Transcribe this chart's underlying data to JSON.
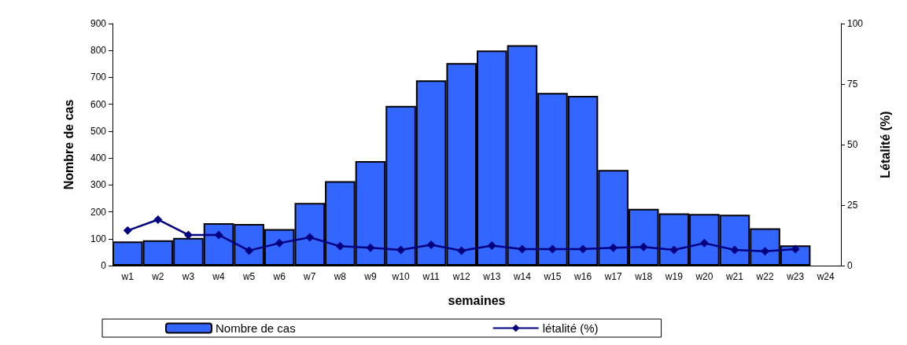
{
  "chart_data": {
    "type": "bar",
    "xlabel": "semaines",
    "ylabel": "Nombre de cas",
    "y2label": "Létalité (%)",
    "categories": [
      "w1",
      "w2",
      "w3",
      "w4",
      "w5",
      "w6",
      "w7",
      "w8",
      "w9",
      "w10",
      "w11",
      "w12",
      "w13",
      "w14",
      "w15",
      "w16",
      "w17",
      "w18",
      "w19",
      "w20",
      "w21",
      "w22",
      "w23",
      "w24"
    ],
    "series": [
      {
        "name": "Nombre de cas",
        "color": "#3366ff",
        "values": [
          90,
          94,
          103,
          158,
          155,
          136,
          233,
          314,
          389,
          594,
          689,
          753,
          800,
          820,
          642,
          631,
          356,
          211,
          194,
          192,
          189,
          139,
          75,
          null
        ]
      },
      {
        "name": "létalité (%)",
        "type": "line",
        "axis": "y2",
        "color": "#000080",
        "marker": "diamond",
        "values": [
          14.5,
          19,
          12.7,
          12.7,
          6.2,
          9.3,
          11.7,
          8,
          7.4,
          6.5,
          8.6,
          6.2,
          8.3,
          6.8,
          6.8,
          6.8,
          7.4,
          7.7,
          6.5,
          9.3,
          6.5,
          5.9,
          6.8,
          null
        ]
      }
    ],
    "ylim": [
      0,
      900
    ],
    "yticks": [
      0,
      100,
      200,
      300,
      400,
      500,
      600,
      700,
      800,
      900
    ],
    "y2lim": [
      0,
      100
    ],
    "y2ticks": [
      0,
      25,
      50,
      75,
      100
    ],
    "grid": false,
    "legend": "bottom"
  }
}
